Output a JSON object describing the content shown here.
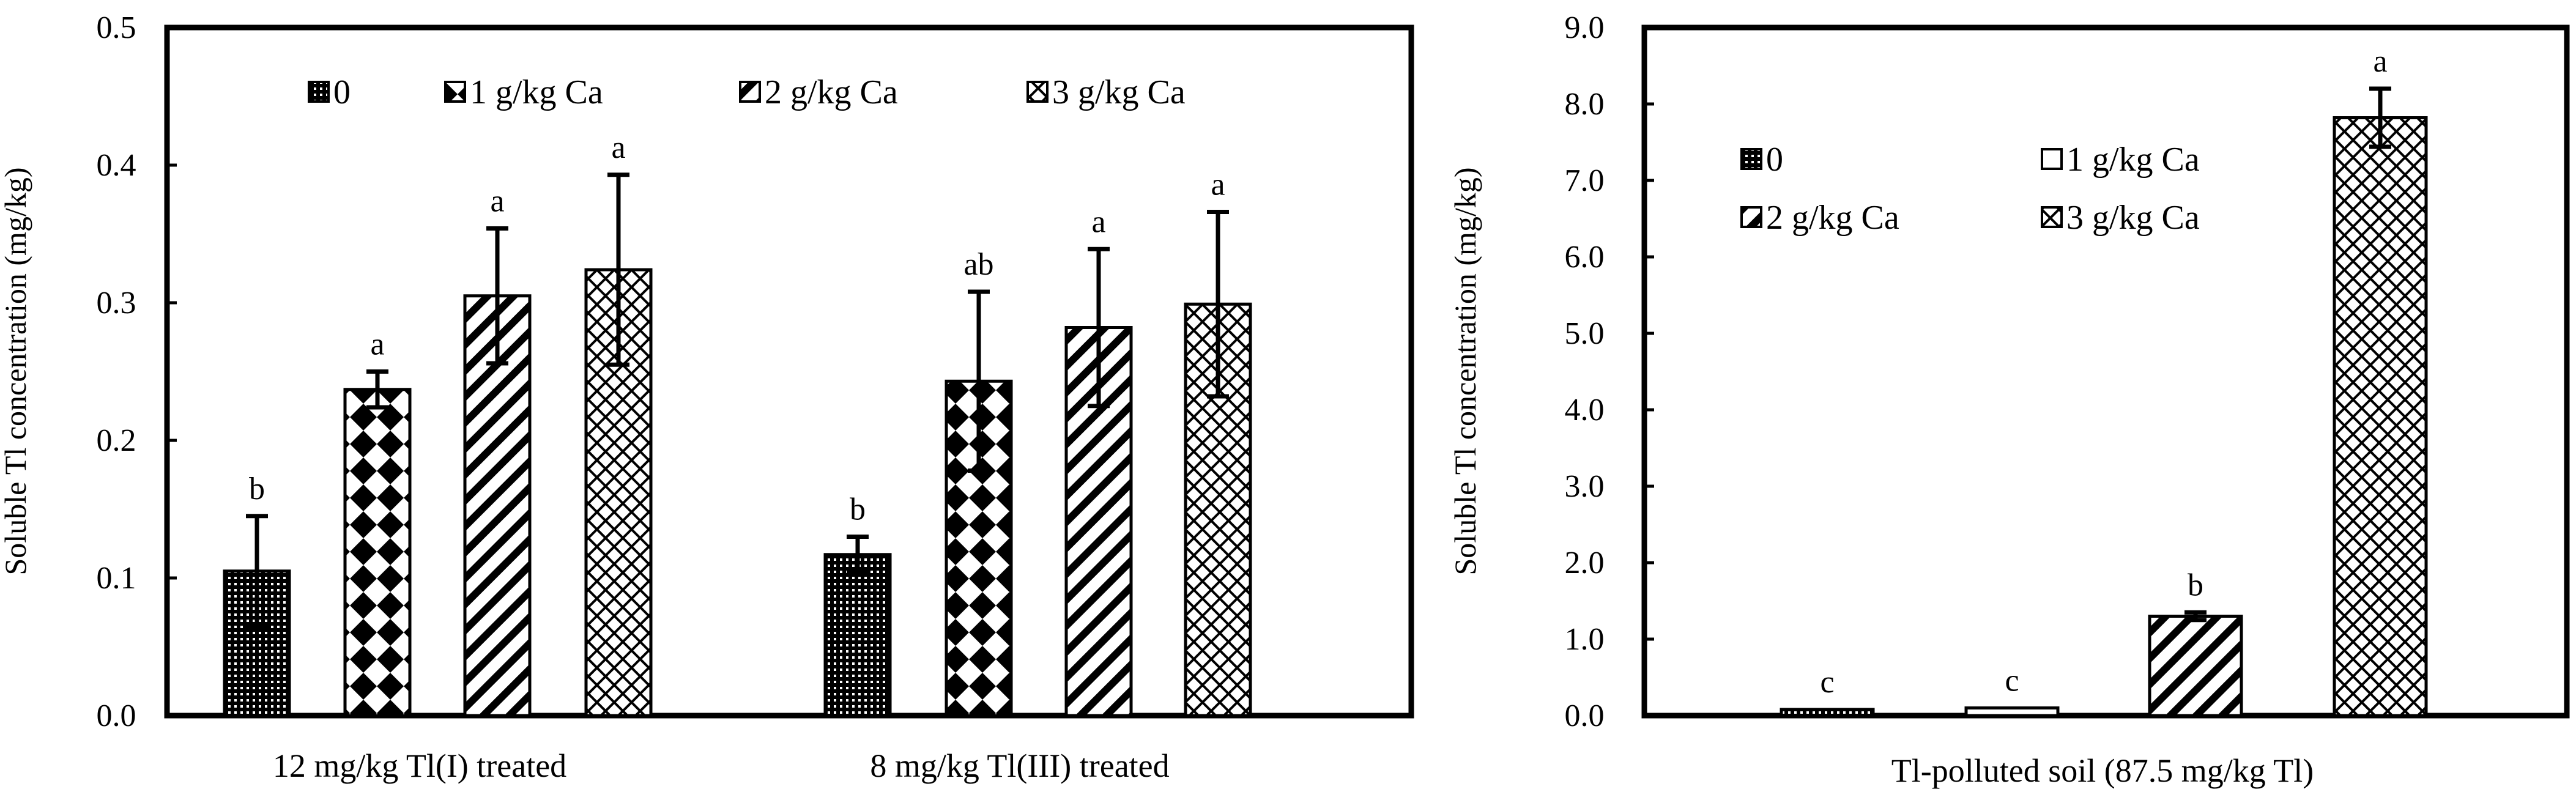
{
  "chart_data": [
    {
      "type": "bar",
      "title": "",
      "ylabel": "Soluble Tl concentration (mg/kg)",
      "xlabel": "",
      "ylim": [
        0,
        0.5
      ],
      "yticks": [
        0.0,
        0.1,
        0.2,
        0.3,
        0.4,
        0.5
      ],
      "ytick_labels": [
        "0.0",
        "0.1",
        "0.2",
        "0.3",
        "0.4",
        "0.5"
      ],
      "legend_position": "top",
      "categories": [
        "12 mg/kg Tl(I) treated",
        "8 mg/kg Tl(III) treated"
      ],
      "series": [
        {
          "name": "0",
          "pattern": "dots",
          "values": [
            0.105,
            0.117
          ],
          "errors": [
            0.04,
            0.013
          ],
          "letters": [
            "b",
            "b"
          ]
        },
        {
          "name": "1 g/kg Ca",
          "pattern": "diamonds",
          "values": [
            0.237,
            0.243
          ],
          "errors": [
            0.013,
            0.065
          ],
          "letters": [
            "a",
            "ab"
          ]
        },
        {
          "name": "2 g/kg Ca",
          "pattern": "stripes",
          "values": [
            0.305,
            0.282
          ],
          "errors": [
            0.049,
            0.057
          ],
          "letters": [
            "a",
            "a"
          ]
        },
        {
          "name": "3 g/kg Ca",
          "pattern": "checker",
          "values": [
            0.324,
            0.299
          ],
          "errors": [
            0.069,
            0.067
          ],
          "letters": [
            "a",
            "a"
          ]
        }
      ]
    },
    {
      "type": "bar",
      "title": "",
      "ylabel": "Soluble Tl concentration (mg/kg)",
      "xlabel": "",
      "ylim": [
        0,
        9
      ],
      "yticks": [
        0,
        1,
        2,
        3,
        4,
        5,
        6,
        7,
        8,
        9
      ],
      "ytick_labels": [
        "0.0",
        "1.0",
        "2.0",
        "3.0",
        "4.0",
        "5.0",
        "6.0",
        "7.0",
        "8.0",
        "9.0"
      ],
      "legend_position": "top-left",
      "categories": [
        "Tl-polluted soil (87.5 mg/kg Tl)"
      ],
      "series": [
        {
          "name": "0",
          "pattern": "dots",
          "values": [
            0.08
          ],
          "errors": [
            0.0
          ],
          "letters": [
            "c"
          ]
        },
        {
          "name": "1 g/kg Ca",
          "pattern": "blank",
          "values": [
            0.1
          ],
          "errors": [
            0.0
          ],
          "letters": [
            "c"
          ]
        },
        {
          "name": "2 g/kg Ca",
          "pattern": "stripes",
          "values": [
            1.3
          ],
          "errors": [
            0.05
          ],
          "letters": [
            "b"
          ]
        },
        {
          "name": "3 g/kg Ca",
          "pattern": "checker",
          "values": [
            7.82
          ],
          "errors": [
            0.38
          ],
          "letters": [
            "a"
          ]
        }
      ]
    }
  ]
}
